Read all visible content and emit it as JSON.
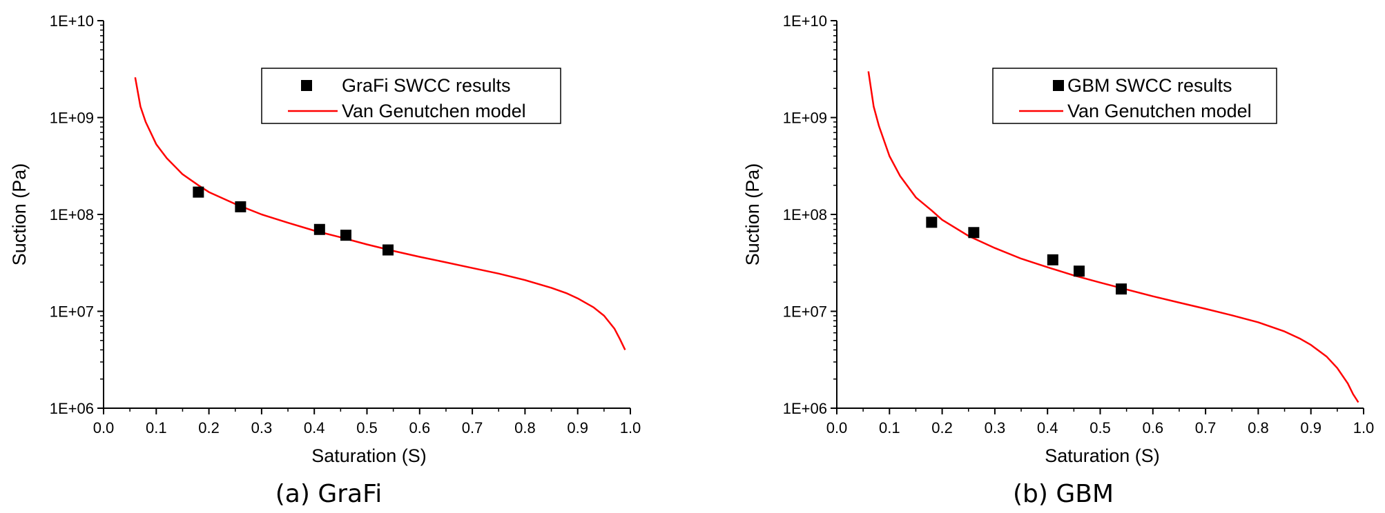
{
  "chart_data": [
    {
      "type": "scatter",
      "panel_caption": "(a) GraFi",
      "xlabel": "Saturation (S)",
      "ylabel": "Suction (Pa)",
      "xlim": [
        0.0,
        1.0
      ],
      "ylim": [
        1000000,
        10000000000
      ],
      "yscale": "log",
      "x_ticks": [
        "0.0",
        "0.1",
        "0.2",
        "0.3",
        "0.4",
        "0.5",
        "0.6",
        "0.7",
        "0.8",
        "0.9",
        "1.0"
      ],
      "y_ticks": [
        "1E+06",
        "1E+07",
        "1E+08",
        "1E+09",
        "1E+10"
      ],
      "legend_position": "top-right",
      "series": [
        {
          "name": "GraFi SWCC results",
          "kind": "scatter",
          "marker": "square",
          "color": "#000000",
          "x": [
            0.18,
            0.26,
            0.41,
            0.46,
            0.54
          ],
          "y": [
            170000000,
            120000000,
            70000000,
            61000000,
            43000000
          ]
        },
        {
          "name": "Van Genutchen model",
          "kind": "line",
          "color": "#ff0000",
          "x": [
            0.06,
            0.07,
            0.08,
            0.1,
            0.12,
            0.15,
            0.18,
            0.2,
            0.25,
            0.3,
            0.35,
            0.4,
            0.45,
            0.5,
            0.55,
            0.6,
            0.65,
            0.7,
            0.75,
            0.8,
            0.85,
            0.88,
            0.9,
            0.93,
            0.95,
            0.97,
            0.98,
            0.99
          ],
          "y": [
            2600000000,
            1300000000,
            900000000,
            530000000,
            380000000,
            260000000,
            200000000,
            170000000,
            128000000,
            100000000,
            82000000,
            68000000,
            58000000,
            49000000,
            42000000,
            36500000,
            32000000,
            28000000,
            24500000,
            21000000,
            17500000,
            15300000,
            13600000,
            11000000,
            9000000,
            6600000,
            5200000,
            4000000
          ]
        }
      ]
    },
    {
      "type": "scatter",
      "panel_caption": "(b) GBM",
      "xlabel": "Saturation (S)",
      "ylabel": "Suction (Pa)",
      "xlim": [
        0.0,
        1.0
      ],
      "ylim": [
        1000000,
        10000000000
      ],
      "yscale": "log",
      "x_ticks": [
        "0.0",
        "0.1",
        "0.2",
        "0.3",
        "0.4",
        "0.5",
        "0.6",
        "0.7",
        "0.8",
        "0.9",
        "1.0"
      ],
      "y_ticks": [
        "1E+06",
        "1E+07",
        "1E+08",
        "1E+09",
        "1E+10"
      ],
      "legend_position": "top-right",
      "series": [
        {
          "name": "GBM SWCC results",
          "kind": "scatter",
          "marker": "square",
          "color": "#000000",
          "x": [
            0.18,
            0.26,
            0.41,
            0.46,
            0.54
          ],
          "y": [
            83000000,
            65000000,
            34000000,
            26000000,
            17000000
          ]
        },
        {
          "name": "Van Genutchen model",
          "kind": "line",
          "color": "#ff0000",
          "x": [
            0.06,
            0.07,
            0.08,
            0.1,
            0.12,
            0.15,
            0.18,
            0.2,
            0.25,
            0.3,
            0.35,
            0.4,
            0.45,
            0.5,
            0.55,
            0.6,
            0.65,
            0.7,
            0.75,
            0.8,
            0.85,
            0.88,
            0.9,
            0.93,
            0.95,
            0.97,
            0.98,
            0.99
          ],
          "y": [
            3000000000,
            1300000000,
            820000000,
            400000000,
            250000000,
            150000000,
            110000000,
            88000000,
            60000000,
            45000000,
            35000000,
            28500000,
            23500000,
            19800000,
            16800000,
            14300000,
            12300000,
            10600000,
            9100000,
            7700000,
            6200000,
            5200000,
            4500000,
            3400000,
            2600000,
            1800000,
            1400000,
            1150000
          ]
        }
      ]
    }
  ]
}
